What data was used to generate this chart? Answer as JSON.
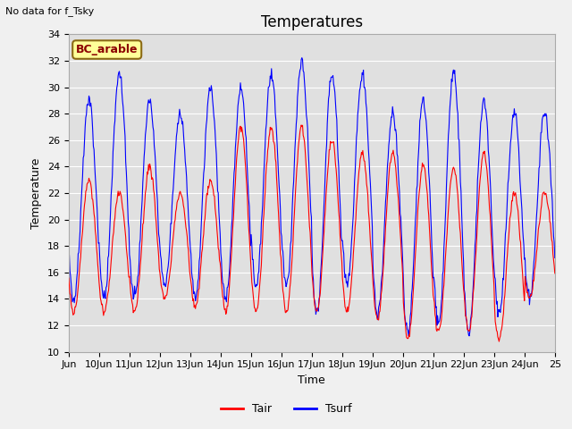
{
  "title": "Temperatures",
  "no_data_text": "No data for f_Tsky",
  "bc_label": "BC_arable",
  "xlabel": "Time",
  "ylabel": "Temperature",
  "ylim": [
    10,
    34
  ],
  "yticks": [
    10,
    12,
    14,
    16,
    18,
    20,
    22,
    24,
    26,
    28,
    30,
    32,
    34
  ],
  "xtick_labels": [
    "Jun",
    "10Jun",
    "11Jun",
    "12Jun",
    "13Jun",
    "14Jun",
    "15Jun",
    "16Jun",
    "17Jun",
    "18Jun",
    "19Jun",
    "20Jun",
    "21Jun",
    "22Jun",
    "23Jun",
    "24Jun",
    "25"
  ],
  "tair_color": "#ff0000",
  "tsurf_color": "#0000ff",
  "bg_color": "#e0e0e0",
  "fig_color": "#f0f0f0",
  "legend_items": [
    "Tair",
    "Tsurf"
  ],
  "title_fontsize": 12,
  "axis_label_fontsize": 9,
  "tick_fontsize": 8,
  "n_days": 16
}
